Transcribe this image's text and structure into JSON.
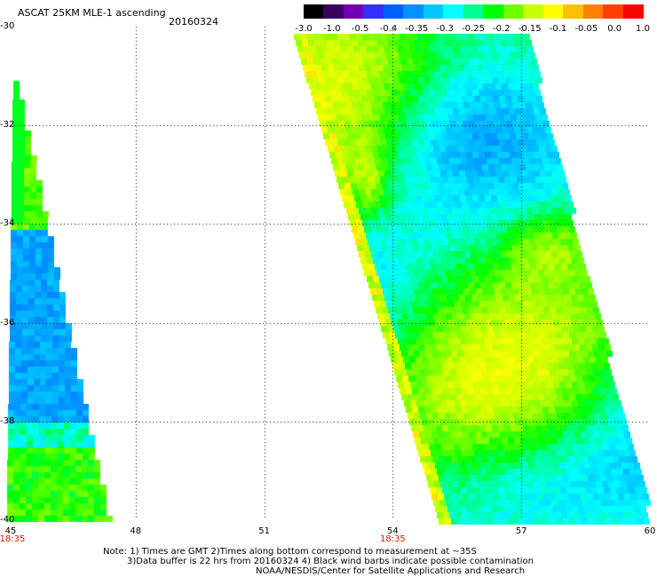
{
  "header": {
    "title": "ASCAT 25KM MLE-1 ascending",
    "date": "20160324"
  },
  "colorbar": {
    "labels": [
      "-3.0",
      "-1.0",
      "-0.5",
      "-0.4",
      "-0.35",
      "-0.3",
      "-0.25",
      "-0.2",
      "-0.15",
      "-0.1",
      "-0.05",
      "0.0",
      "1.0"
    ],
    "colors": [
      "#000000",
      "#3a0060",
      "#7000b0",
      "#3030ff",
      "#0060ff",
      "#0090ff",
      "#00c8ff",
      "#00ffff",
      "#00ff90",
      "#00ff00",
      "#70ff00",
      "#c8ff00",
      "#ffff00",
      "#ffc000",
      "#ff8000",
      "#ff4000",
      "#ff0000"
    ]
  },
  "axes": {
    "y_labels": [
      "-30",
      "-32",
      "-34",
      "-36",
      "-38",
      "-40"
    ],
    "y_values": [
      -30,
      -32,
      -34,
      -36,
      -38,
      -40
    ],
    "x_labels": [
      "45",
      "48",
      "51",
      "54",
      "57",
      "60"
    ],
    "x_values": [
      45,
      48,
      51,
      54,
      57,
      60
    ],
    "lat_range": [
      -40,
      -30
    ],
    "lon_range": [
      45,
      60
    ],
    "grid": "dotted"
  },
  "time_labels": [
    {
      "text": "18:35",
      "lon": 45
    },
    {
      "text": "18:35",
      "lon": 54
    }
  ],
  "swaths": [
    {
      "name": "west-swath",
      "top_lat": -31.1,
      "bottom_lat": -40,
      "left_lon_top": 45.15,
      "left_lon_bottom": 45.0,
      "right_lon_top": 45.2,
      "right_lon_bottom": 47.35,
      "kind": "west"
    },
    {
      "name": "east-swath",
      "top_lat": -30.15,
      "bottom_lat": -40,
      "left_lon_top": 51.7,
      "left_lon_bottom": 55.1,
      "right_lon_top": 57.1,
      "right_lon_bottom": 60,
      "kind": "east"
    }
  ],
  "notes": {
    "line1": "Note: 1) Times are GMT 2)Times along bottom correspond to measurement at ~35S",
    "line2": "3)Data buffer is 22 hrs from 20160324 4) Black wind barbs indicate possible contamination",
    "line3": "NOAA/NESDIS/Center for Satellite Applications and Research"
  }
}
